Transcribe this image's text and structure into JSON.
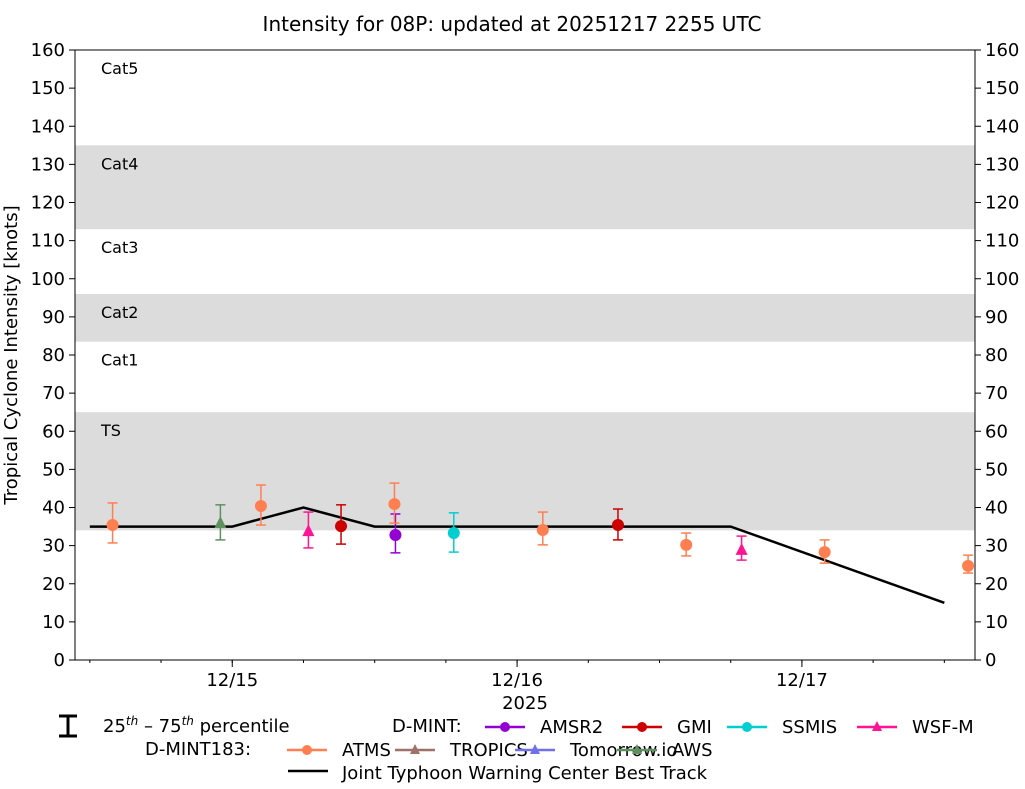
{
  "chart_data": {
    "type": "scatter",
    "title": "Intensity for 08P: updated at 20251217 2255 UTC",
    "xlabel": "2025",
    "ylabel": "Tropical Cyclone Intensity [knots]",
    "xlim": [
      "2025-12-14 10:45",
      "2025-12-17 14:35"
    ],
    "ylim": [
      0,
      160
    ],
    "yticks": [
      0,
      10,
      20,
      30,
      40,
      50,
      60,
      70,
      80,
      90,
      100,
      110,
      120,
      130,
      140,
      150,
      160
    ],
    "xticks": [
      {
        "t": "2025-12-15 00:00",
        "label": "12/15"
      },
      {
        "t": "2025-12-16 00:00",
        "label": "12/16"
      },
      {
        "t": "2025-12-17 00:00",
        "label": "12/17"
      }
    ],
    "x_minor_tick_hours": 6,
    "grid": false,
    "category_bands": [
      {
        "label": "Cat5",
        "min": 137,
        "max": 160,
        "shaded": false
      },
      {
        "label": "Cat4",
        "min": 113,
        "max": 135,
        "shaded": true
      },
      {
        "label": "Cat3",
        "min": 96,
        "max": 113,
        "shaded": false
      },
      {
        "label": "Cat2",
        "min": 83.5,
        "max": 96,
        "shaded": true
      },
      {
        "label": "Cat1",
        "min": 65,
        "max": 83.5,
        "shaded": false
      },
      {
        "label": "TS",
        "min": 34,
        "max": 65,
        "shaded": true
      }
    ],
    "band_color": "#dcdcdc",
    "best_track": {
      "name": "Joint Typhoon Warning Center Best Track",
      "color": "#000000",
      "points": [
        {
          "t": "2025-12-14 12:00",
          "v": 35
        },
        {
          "t": "2025-12-15 00:00",
          "v": 35
        },
        {
          "t": "2025-12-15 06:00",
          "v": 40
        },
        {
          "t": "2025-12-15 12:00",
          "v": 35
        },
        {
          "t": "2025-12-16 18:00",
          "v": 35
        },
        {
          "t": "2025-12-17 12:00",
          "v": 15
        }
      ]
    },
    "series": [
      {
        "name": "AMSR2",
        "group": "D-MINT",
        "color": "#9400d3",
        "marker": "circle",
        "points": [
          {
            "t": "2025-12-15 13:45",
            "v": 32.8,
            "p25": 28.1,
            "p75": 38.3
          }
        ]
      },
      {
        "name": "GMI",
        "group": "D-MINT",
        "color": "#cc0000",
        "marker": "circle",
        "points": [
          {
            "t": "2025-12-15 09:10",
            "v": 35.1,
            "p25": 30.4,
            "p75": 40.7
          },
          {
            "t": "2025-12-16 08:30",
            "v": 35.4,
            "p25": 31.5,
            "p75": 39.6
          }
        ]
      },
      {
        "name": "SSMIS",
        "group": "D-MINT",
        "color": "#00ced1",
        "marker": "circle",
        "points": [
          {
            "t": "2025-12-15 18:40",
            "v": 33.3,
            "p25": 28.3,
            "p75": 38.6
          }
        ]
      },
      {
        "name": "WSF-M",
        "group": "D-MINT",
        "color": "#ff1493",
        "marker": "triangle",
        "points": [
          {
            "t": "2025-12-15 06:25",
            "v": 33.8,
            "p25": 29.4,
            "p75": 38.8
          },
          {
            "t": "2025-12-16 18:55",
            "v": 28.9,
            "p25": 26.2,
            "p75": 32.5
          }
        ]
      },
      {
        "name": "ATMS",
        "group": "D-MINT183",
        "color": "#ff7f50",
        "marker": "circle",
        "points": [
          {
            "t": "2025-12-14 13:55",
            "v": 35.4,
            "p25": 30.7,
            "p75": 41.2
          },
          {
            "t": "2025-12-15 02:25",
            "v": 40.4,
            "p25": 35.4,
            "p75": 45.9
          },
          {
            "t": "2025-12-15 13:40",
            "v": 40.9,
            "p25": 35.9,
            "p75": 46.4
          },
          {
            "t": "2025-12-16 02:10",
            "v": 34.1,
            "p25": 30.2,
            "p75": 38.8
          },
          {
            "t": "2025-12-16 14:15",
            "v": 30.2,
            "p25": 27.3,
            "p75": 33.3
          },
          {
            "t": "2025-12-17 01:55",
            "v": 28.3,
            "p25": 25.4,
            "p75": 31.5
          },
          {
            "t": "2025-12-17 14:00",
            "v": 24.7,
            "p25": 22.8,
            "p75": 27.5
          }
        ]
      },
      {
        "name": "TROPICS",
        "group": "D-MINT183",
        "color": "#a0706a",
        "marker": "triangle",
        "points": []
      },
      {
        "name": "Tomorrow.io",
        "group": "D-MINT183",
        "color": "#7070e8",
        "marker": "triangle",
        "points": []
      },
      {
        "name": "AWS",
        "group": "D-MINT183",
        "color": "#5f9060",
        "marker": "triangle",
        "points": [
          {
            "t": "2025-12-14 23:00",
            "v": 35.9,
            "p25": 31.5,
            "p75": 40.7
          }
        ]
      }
    ],
    "legend": {
      "placement": "bottom",
      "percentile": {
        "a": "25",
        "sup1": "th",
        "mid": " – 75",
        "sup2": "th",
        "tail": " percentile"
      },
      "dmint_label": "D-MINT:",
      "dmint183_label": "D-MINT183:"
    }
  }
}
